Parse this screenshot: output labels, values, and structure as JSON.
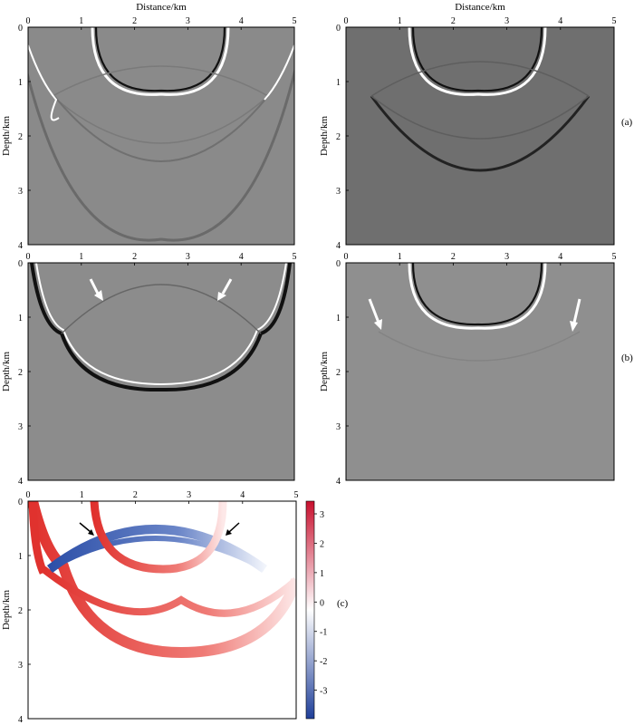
{
  "figure": {
    "top_xlabel": "Distance/km",
    "ylabel": "Depth/km",
    "x_ticks": [
      "0",
      "1",
      "2",
      "3",
      "4",
      "5"
    ],
    "y_ticks": [
      "0",
      "1",
      "2",
      "3",
      "4"
    ],
    "panel_labels": {
      "a": "(a)",
      "b": "(b)",
      "c": "(c)"
    },
    "colorbar": {
      "ticks": [
        "3",
        "2",
        "1",
        "0",
        "-1",
        "-2",
        "-3"
      ],
      "colors": {
        "high": "#c8102e",
        "mid": "#ffffff",
        "low": "#1f3f99"
      }
    },
    "panels": [
      {
        "id": "a-left",
        "background": "#8a8a8a"
      },
      {
        "id": "a-right",
        "background": "#6f6f6f"
      },
      {
        "id": "b-left",
        "background": "#8c8c8c"
      },
      {
        "id": "b-right",
        "background": "#8f8f8f"
      },
      {
        "id": "c-left",
        "background": "#ffffff"
      }
    ]
  }
}
